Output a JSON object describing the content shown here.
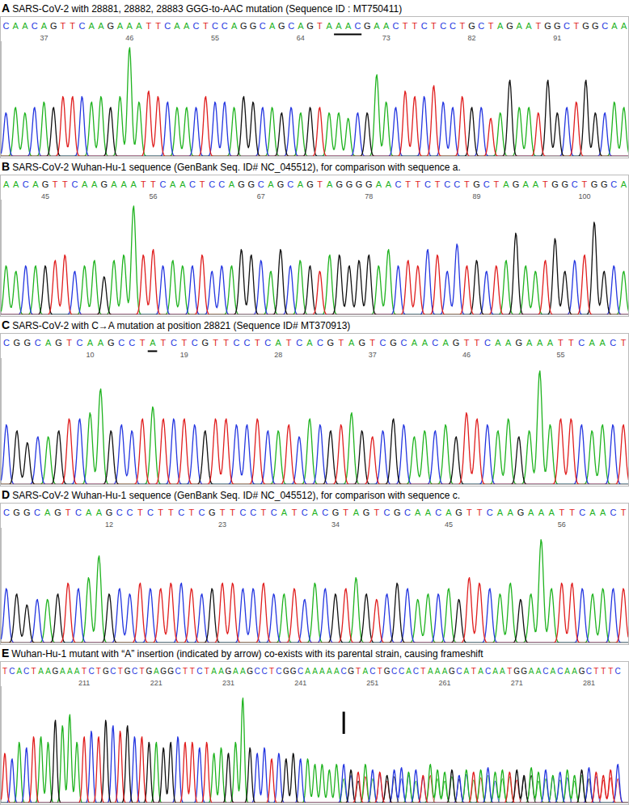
{
  "chart_data": [
    {
      "type": "chromatogram",
      "label": "A",
      "title": "SARS-CoV-2 with 28881, 28882, 28883 GGG-to-AAC mutation (Sequence ID : MT750411)",
      "sequence": "CAACAGTTCAAGAAATTCAACTCCAGGCAGCAGTAAACGAACTTCTCCTGCTAGAATGGCTGGCAA",
      "x": [
        33,
        34,
        35,
        36,
        37,
        38,
        39,
        40,
        41,
        42,
        43,
        44,
        45,
        46,
        47,
        48,
        49,
        50,
        51,
        52,
        53,
        54,
        55,
        56,
        57,
        58,
        59,
        60,
        61,
        62,
        63,
        64,
        65,
        66,
        67,
        68,
        69,
        70,
        71,
        72,
        73,
        74,
        75,
        76,
        77,
        78,
        79,
        80,
        81,
        82,
        83,
        84,
        85,
        86,
        87,
        88,
        89,
        90,
        91,
        92,
        93,
        94,
        95,
        96,
        97,
        98
      ],
      "values": [
        40,
        45,
        40,
        45,
        50,
        45,
        55,
        55,
        55,
        50,
        55,
        45,
        55,
        100,
        50,
        60,
        55,
        50,
        45,
        45,
        45,
        55,
        50,
        50,
        45,
        55,
        50,
        45,
        45,
        40,
        45,
        40,
        45,
        45,
        40,
        40,
        35,
        40,
        40,
        75,
        50,
        45,
        60,
        55,
        55,
        65,
        50,
        45,
        55,
        45,
        45,
        35,
        40,
        70,
        45,
        45,
        40,
        70,
        40,
        45,
        50,
        70,
        40,
        40,
        50,
        45
      ],
      "xlim": [
        32.5,
        98.5
      ],
      "xticks": [
        37,
        46,
        55,
        64,
        73,
        82,
        91
      ],
      "ylim": [
        0,
        105
      ],
      "tick_labels": "x",
      "underline": [
        68,
        70
      ]
    },
    {
      "type": "chromatogram",
      "label": "B",
      "title": "SARS-CoV-2 Wuhan-Hu-1 sequence (GenBank Seq. ID# NC_045512), for comparison with sequence a.",
      "sequence": "AACAGTTCAAGAAATTCAACTCCAGGCAGCAGTAGGGGAACTTCTCCTGCTAGAATGGCTGGCA",
      "x": [
        41,
        42,
        43,
        44,
        45,
        46,
        47,
        48,
        49,
        50,
        51,
        52,
        53,
        54,
        55,
        56,
        57,
        58,
        59,
        60,
        61,
        62,
        63,
        64,
        65,
        66,
        67,
        68,
        69,
        70,
        71,
        72,
        73,
        74,
        75,
        76,
        77,
        78,
        79,
        80,
        81,
        82,
        83,
        84,
        85,
        86,
        87,
        88,
        89,
        90,
        91,
        92,
        93,
        94,
        95,
        96,
        97,
        98,
        99,
        100,
        101,
        102,
        103,
        104
      ],
      "values": [
        45,
        40,
        45,
        45,
        45,
        50,
        55,
        40,
        45,
        50,
        35,
        50,
        55,
        100,
        55,
        60,
        45,
        50,
        45,
        45,
        55,
        40,
        45,
        45,
        60,
        55,
        50,
        40,
        60,
        45,
        50,
        45,
        40,
        55,
        55,
        45,
        50,
        55,
        45,
        60,
        45,
        50,
        45,
        60,
        55,
        40,
        65,
        45,
        50,
        40,
        45,
        50,
        75,
        45,
        40,
        50,
        70,
        40,
        50,
        55,
        85,
        40,
        45,
        40
      ],
      "xlim": [
        40.5,
        104.5
      ],
      "xticks": [
        45,
        56,
        67,
        78,
        89,
        100
      ],
      "ylim": [
        0,
        105
      ],
      "tick_labels": "x"
    },
    {
      "type": "chromatogram",
      "label": "C",
      "title": "SARS-CoV-2 with C→A mutation at position 28821 (Sequence ID# MT370913)",
      "sequence": "CGGCAGTCAAGCCTATCTCGTTCCTCATCACGTAGTCGCAACAGTTCAAGAAATTCAACT",
      "x": [
        2,
        3,
        4,
        5,
        6,
        7,
        8,
        9,
        10,
        11,
        12,
        13,
        14,
        15,
        16,
        17,
        18,
        19,
        20,
        21,
        22,
        23,
        24,
        25,
        26,
        27,
        28,
        29,
        30,
        31,
        32,
        33,
        34,
        35,
        36,
        37,
        38,
        39,
        40,
        41,
        42,
        43,
        44,
        45,
        46,
        47,
        48,
        49,
        50,
        51,
        52,
        53,
        54,
        55,
        56,
        57,
        58,
        59,
        60,
        61
      ],
      "values": [
        50,
        45,
        35,
        40,
        40,
        45,
        55,
        55,
        60,
        80,
        45,
        50,
        45,
        55,
        65,
        55,
        55,
        55,
        50,
        45,
        55,
        55,
        50,
        50,
        55,
        45,
        45,
        50,
        40,
        55,
        50,
        45,
        50,
        60,
        45,
        40,
        45,
        55,
        50,
        40,
        45,
        45,
        50,
        40,
        60,
        55,
        50,
        45,
        55,
        40,
        45,
        95,
        50,
        55,
        55,
        50,
        45,
        50,
        50,
        50
      ],
      "xlim": [
        1.5,
        61.5
      ],
      "xticks": [
        10,
        19,
        28,
        37,
        46,
        55
      ],
      "ylim": [
        0,
        105
      ],
      "tick_labels": "x",
      "underline": [
        16,
        16
      ]
    },
    {
      "type": "chromatogram",
      "label": "D",
      "title": "SARS-CoV-2 Wuhan-Hu-1 sequence (GenBank Seq. ID# NC_045512), for comparison with sequence c.",
      "sequence": "CGGCAGTCAAGCCTCTTCTCGTTCCTCATCACGTAGTCGCAACAGTTCAAGAAATTCAACT",
      "x": [
        2,
        3,
        4,
        5,
        6,
        7,
        8,
        9,
        10,
        11,
        12,
        13,
        14,
        15,
        16,
        17,
        18,
        19,
        20,
        21,
        22,
        23,
        24,
        25,
        26,
        27,
        28,
        29,
        30,
        31,
        32,
        33,
        34,
        35,
        36,
        37,
        38,
        39,
        40,
        41,
        42,
        43,
        44,
        45,
        46,
        47,
        48,
        49,
        50,
        51,
        52,
        53,
        54,
        55,
        56,
        57,
        58,
        59,
        60,
        61,
        62
      ],
      "values": [
        50,
        45,
        35,
        40,
        40,
        45,
        55,
        50,
        60,
        80,
        45,
        50,
        45,
        55,
        50,
        50,
        55,
        55,
        50,
        45,
        50,
        55,
        55,
        50,
        50,
        55,
        45,
        45,
        50,
        40,
        55,
        50,
        45,
        50,
        60,
        45,
        40,
        45,
        55,
        50,
        40,
        45,
        45,
        50,
        40,
        60,
        55,
        50,
        45,
        55,
        40,
        45,
        95,
        50,
        55,
        55,
        50,
        45,
        50,
        50,
        50
      ],
      "xlim": [
        1.5,
        62.5
      ],
      "xticks": [
        12,
        23,
        34,
        45,
        56
      ],
      "ylim": [
        0,
        105
      ],
      "tick_labels": "x"
    },
    {
      "type": "chromatogram",
      "label": "E",
      "title": "Wuhan-Hu-1 mutant with “A” insertion (indicated by arrow) co-exists with its parental strain, causing frameshift",
      "sequence": "TCACTAAGAAATCTGCTGCTGAGGCTTCTAAGAAGCCTCGGCAAAAACGTACTGCCACTAAAGCATACAATGGAACACAAGCTTTC",
      "x": [
        200,
        201,
        202,
        203,
        204,
        205,
        206,
        207,
        208,
        209,
        210,
        211,
        212,
        213,
        214,
        215,
        216,
        217,
        218,
        219,
        220,
        221,
        222,
        223,
        224,
        225,
        226,
        227,
        228,
        229,
        230,
        231,
        232,
        233,
        234,
        235,
        236,
        237,
        238,
        239,
        240,
        241,
        242,
        243,
        244,
        245,
        246,
        247,
        248,
        249,
        250,
        251,
        252,
        253,
        254,
        255,
        256,
        257,
        258,
        259,
        260,
        261,
        262,
        263,
        264,
        265,
        266,
        267,
        268,
        269,
        270,
        271,
        272,
        273,
        274,
        275,
        276,
        277,
        278,
        279,
        280,
        281,
        282,
        283,
        284,
        285
      ],
      "values": [
        45,
        40,
        55,
        50,
        60,
        60,
        55,
        75,
        70,
        80,
        55,
        60,
        65,
        60,
        75,
        70,
        65,
        70,
        60,
        60,
        55,
        55,
        50,
        55,
        60,
        55,
        55,
        50,
        55,
        45,
        50,
        45,
        55,
        95,
        50,
        45,
        50,
        40,
        45,
        40,
        45,
        40,
        40,
        35,
        35,
        30,
        35,
        35,
        30,
        28,
        35,
        30,
        28,
        25,
        30,
        32,
        28,
        30,
        25,
        35,
        30,
        28,
        30,
        25,
        30,
        28,
        30,
        32,
        28,
        30,
        28,
        30,
        25,
        32,
        28,
        30,
        25,
        28,
        30,
        25,
        30,
        32,
        28,
        25,
        30,
        35
      ],
      "secondary_values": [
        null,
        null,
        null,
        null,
        null,
        null,
        null,
        null,
        null,
        null,
        null,
        null,
        null,
        null,
        null,
        null,
        null,
        null,
        null,
        null,
        null,
        null,
        null,
        null,
        null,
        null,
        null,
        null,
        null,
        null,
        null,
        null,
        null,
        null,
        null,
        null,
        null,
        null,
        null,
        null,
        null,
        null,
        null,
        null,
        null,
        null,
        null,
        22,
        25,
        20,
        24,
        22,
        26,
        20,
        24,
        22,
        25,
        20,
        23,
        25,
        22,
        20,
        24,
        22,
        26,
        21,
        23,
        25,
        20,
        22,
        24,
        21,
        23,
        25,
        20,
        22,
        24,
        21,
        23,
        20,
        25,
        22,
        24,
        21,
        23,
        22
      ],
      "xlim": [
        199.5,
        286.5
      ],
      "xticks": [
        211,
        221,
        231,
        241,
        251,
        261,
        271,
        281
      ],
      "ylim": [
        0,
        105
      ],
      "tick_labels": "x",
      "arrow": 247
    }
  ]
}
